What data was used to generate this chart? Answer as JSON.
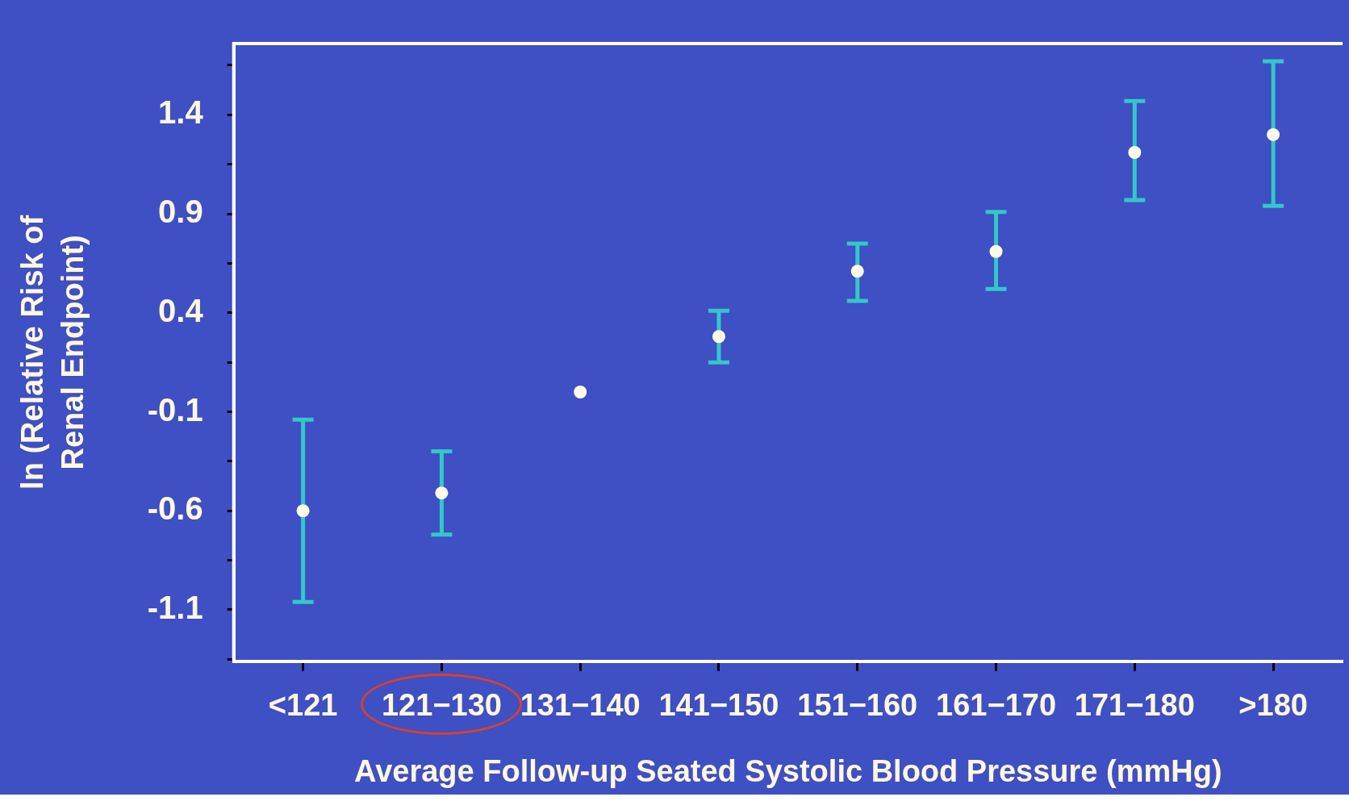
{
  "chart_data": {
    "type": "scatter",
    "xlabel": "Average Follow-up Seated Systolic Blood Pressure (mmHg)",
    "ylabel": "ln (Relative Risk of Renal Endpoint)",
    "categories": [
      "<121",
      "121−130",
      "131−140",
      "141−150",
      "151−160",
      "161−170",
      "171−180",
      ">180"
    ],
    "series": [
      {
        "color": "#fffbe6",
        "values": [
          -0.6,
          -0.51,
          0,
          0.28,
          0.61,
          0.71,
          1.21,
          1.3
        ],
        "errors": [
          [
            -1.06,
            -0.14
          ],
          [
            -0.72,
            -0.3
          ],
          null,
          [
            0.15,
            0.41
          ],
          [
            0.46,
            0.75
          ],
          [
            0.52,
            0.91
          ],
          [
            0.97,
            1.47
          ],
          [
            0.94,
            1.67
          ]
        ]
      }
    ],
    "ylim": [
      -1.36,
      1.76
    ],
    "yticks": [
      {
        "value": -1.35,
        "label": null
      },
      -1.1,
      {
        "value": -0.85,
        "label": null
      },
      -0.6,
      {
        "value": -0.35,
        "label": null
      },
      -0.1,
      {
        "value": 0.15,
        "label": null
      },
      0.4,
      {
        "value": 0.65,
        "label": null
      },
      0.9,
      {
        "value": 1.15,
        "label": null
      },
      1.4,
      {
        "value": 1.65,
        "label": null
      }
    ],
    "grid": false,
    "legend": false,
    "marker": "circle"
  }
}
